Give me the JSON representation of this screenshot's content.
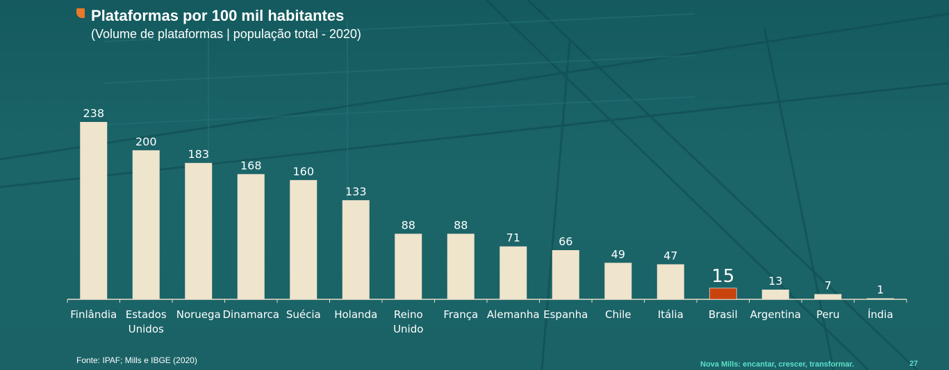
{
  "header": {
    "title": "Plataformas por 100 mil habitantes",
    "subtitle": "(Volume de plataformas | população total -  2020)"
  },
  "footer": {
    "source": "Fonte: IPAF; Mills e IBGE (2020)",
    "slogan": "Nova Mills: encantar, crescer, transformar.",
    "page_number": "27"
  },
  "colors": {
    "bar": "#efe4cc",
    "highlight_bar": "#c8430e",
    "label": "#ffffff",
    "axis": "#e8e0cc"
  },
  "chart_data": {
    "type": "bar",
    "title": "Plataformas por 100 mil habitantes",
    "subtitle": "(Volume de plataformas | população total -  2020)",
    "categories": [
      [
        "Finlândia"
      ],
      [
        "Estados",
        "Unidos"
      ],
      [
        "Noruega"
      ],
      [
        "Dinamarca"
      ],
      [
        "Suécia"
      ],
      [
        "Holanda"
      ],
      [
        "Reino",
        "Unido"
      ],
      [
        "França"
      ],
      [
        "Alemanha"
      ],
      [
        "Espanha"
      ],
      [
        "Chile"
      ],
      [
        "Itália"
      ],
      [
        "Brasil"
      ],
      [
        "Argentina"
      ],
      [
        "Peru"
      ],
      [
        "Índia"
      ]
    ],
    "values": [
      238,
      200,
      183,
      168,
      160,
      133,
      88,
      88,
      71,
      66,
      49,
      47,
      15,
      13,
      7,
      1
    ],
    "highlight": "Brasil",
    "ylim": [
      0,
      238
    ],
    "grid": false,
    "legend": "none",
    "data_labels": true
  }
}
